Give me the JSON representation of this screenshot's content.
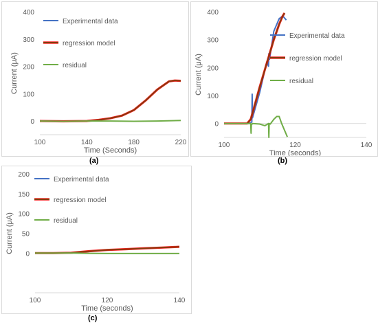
{
  "colors": {
    "experimental": "#4472C4",
    "regression": "#843C0C",
    "regression_outline": "#FF0000",
    "residual": "#70AD47",
    "axis": "#D9D9D9",
    "text": "#595959"
  },
  "chart_data": [
    {
      "panel": "a",
      "caption": "(a)",
      "type": "line",
      "xlabel": "Time (Seconds)",
      "ylabel": "Current (μA)",
      "xlim": [
        100,
        220
      ],
      "ylim": [
        -50,
        400
      ],
      "xticks": [
        "100",
        "140",
        "180",
        "220"
      ],
      "yticks": [
        "400",
        "300",
        "200",
        "100",
        "0"
      ],
      "legend": [
        "Experimental data",
        "regression model",
        "residual"
      ],
      "series": [
        {
          "name": "Experimental data",
          "x": [
            100,
            120,
            140,
            150,
            160,
            170,
            180,
            190,
            200,
            210,
            215,
            220
          ],
          "y": [
            0,
            0,
            0,
            4,
            10,
            20,
            40,
            75,
            115,
            145,
            148,
            147
          ]
        },
        {
          "name": "regression model",
          "x": [
            100,
            120,
            140,
            150,
            160,
            170,
            180,
            190,
            200,
            210,
            215,
            220
          ],
          "y": [
            0,
            -1,
            0,
            4,
            10,
            20,
            40,
            75,
            115,
            145,
            148,
            147
          ]
        },
        {
          "name": "residual",
          "x": [
            100,
            120,
            140,
            160,
            180,
            200,
            220
          ],
          "y": [
            0,
            -1,
            0,
            0,
            -1,
            0,
            2
          ]
        }
      ]
    },
    {
      "panel": "b",
      "caption": "(b)",
      "type": "line",
      "xlabel": "Time (seconds)",
      "ylabel": "Current (μA)",
      "xlim": [
        100,
        140
      ],
      "ylim": [
        -50,
        400
      ],
      "xticks": [
        "100",
        "120",
        "140"
      ],
      "yticks": [
        "400",
        "300",
        "200",
        "100",
        "0"
      ],
      "legend": [
        "Experimental data",
        "regression model",
        "residual"
      ],
      "series": [
        {
          "name": "Experimental data",
          "x": [
            100,
            104,
            107,
            107.8,
            107.9,
            108,
            110,
            112,
            112.5,
            112.6,
            112.8,
            114,
            115.5,
            116.5,
            117.5
          ],
          "y": [
            0,
            0,
            0,
            5,
            105,
            20,
            110,
            220,
            205,
            250,
            230,
            330,
            375,
            385,
            370
          ]
        },
        {
          "name": "regression model",
          "x": [
            100,
            104,
            106.5,
            107.5,
            108.5,
            110,
            112,
            114,
            115.5,
            116.5,
            117
          ],
          "y": [
            0,
            0,
            0,
            15,
            60,
            130,
            215,
            300,
            355,
            385,
            395
          ]
        },
        {
          "name": "residual",
          "x": [
            100,
            104,
            107,
            107.5,
            107.6,
            107.7,
            108,
            110,
            111.5,
            112.5,
            112.6,
            112.7,
            113,
            114,
            114.8,
            115.5,
            116.2,
            117.8
          ],
          "y": [
            0,
            0,
            0,
            0,
            -35,
            -5,
            0,
            -2,
            -8,
            0,
            -50,
            0,
            -2,
            15,
            25,
            25,
            0,
            -48
          ]
        }
      ]
    },
    {
      "panel": "c",
      "caption": "(c)",
      "type": "line",
      "xlabel": "Time (seconds)",
      "ylabel": "Current (μA)",
      "xlim": [
        100,
        140
      ],
      "ylim": [
        -100,
        200
      ],
      "xticks": [
        "100",
        "120",
        "140"
      ],
      "yticks": [
        "200",
        "150",
        "100",
        "50",
        "0"
      ],
      "legend": [
        "Experimental data",
        "regression model",
        "residual"
      ],
      "series": [
        {
          "name": "Experimental data",
          "x": [
            100,
            105,
            110,
            115,
            120,
            125,
            130,
            135,
            140
          ],
          "y": [
            0,
            0,
            0,
            4,
            8,
            10,
            12,
            14,
            16
          ]
        },
        {
          "name": "regression model",
          "x": [
            100,
            105,
            110,
            115,
            120,
            125,
            130,
            135,
            140
          ],
          "y": [
            0,
            0,
            1,
            5,
            8,
            10,
            12,
            14,
            16
          ]
        },
        {
          "name": "residual",
          "x": [
            100,
            110,
            120,
            130,
            140
          ],
          "y": [
            0,
            0,
            -1,
            -1,
            -1
          ]
        }
      ]
    }
  ]
}
